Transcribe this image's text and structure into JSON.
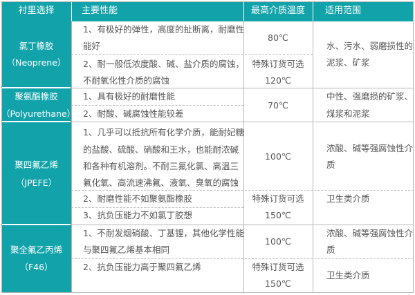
{
  "colors": {
    "accent": "#12a3aa",
    "text": "#555555",
    "border": "#b5b5b5"
  },
  "header": [
    "衬里选择",
    "主要性能",
    "最高介质温度",
    "适用范围"
  ],
  "rows": [
    {
      "name": [
        "氯丁橡胶",
        "（Neoprene）"
      ],
      "props": [
        "1、有极好的弹性，高度的扯断离，耐磨性",
        "能好",
        "2、耐一般低浓度酸、碱、盐介质的腐蚀，",
        "不耐氧化性介质的腐蚀"
      ],
      "temp": [
        "80℃",
        "特殊订货可选",
        "120℃"
      ],
      "range": [
        "水、污水、弱磨损性的",
        "泥浆、矿浆"
      ]
    },
    {
      "name": [
        "聚氨酯橡胶",
        "（Polyurethane）"
      ],
      "props": [
        "1、具有极好的耐磨性能",
        "2、耐酸、碱腐蚀性能较差"
      ],
      "temp": [
        "70℃"
      ],
      "range": [
        "中性、强磨损的矿浆、",
        "煤浆和泥浆"
      ]
    },
    {
      "name": [
        "聚四氟乙烯",
        "（JPEFE）"
      ],
      "props": [
        "1、几乎可以抵抗所有化学介质，能耐妃糖",
        "的盐酸、硫酸、硝酸和王水，也能耐浓碱",
        "和各种有机溶剂。不耐三氟化氯、高温三",
        "氟化氧、高流速沸氟、液氧、臭氧的腐蚀",
        "2、耐磨性能不如聚氨酯橡胶",
        "3、抗负压能力不如氯丁胶想"
      ],
      "temp": [
        "100℃",
        "特殊订货可选",
        "150℃"
      ],
      "range": [
        "浓酸、碱等强腐蚀性介",
        "质",
        "卫生类介质"
      ]
    },
    {
      "name": [
        "聚全氟乙丙烯",
        "（F46）"
      ],
      "props": [
        "1、不耐发烟硝酸、丁基锂，其他化学性能",
        "与聚四氟乙烯基本相同",
        "2、抗负压能力高于聚四氟乙烯"
      ],
      "temp": [
        "100℃",
        "特殊订货可选",
        "150℃"
      ],
      "range": [
        "浓酸、碱等强腐蚀性介",
        "质",
        "卫生类介质"
      ]
    }
  ]
}
